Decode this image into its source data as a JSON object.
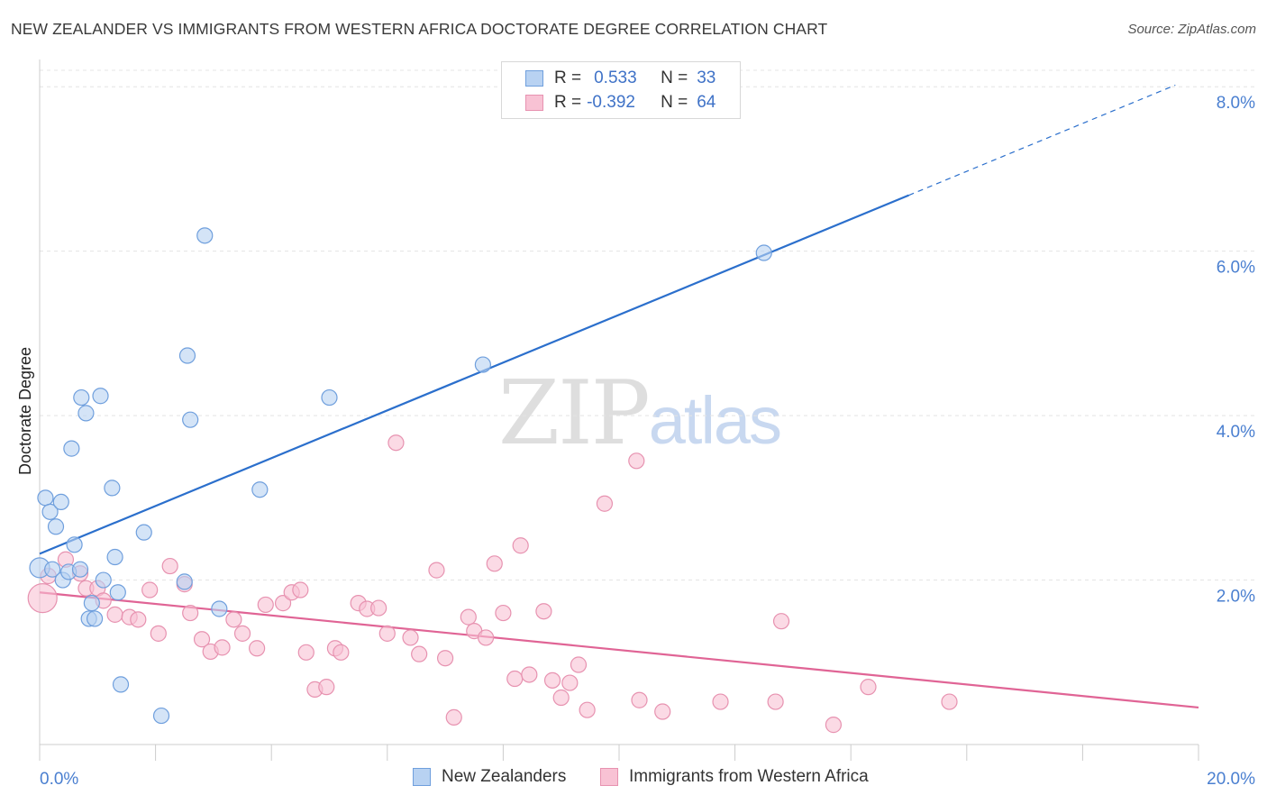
{
  "header": {
    "title": "NEW ZEALANDER VS IMMIGRANTS FROM WESTERN AFRICA DOCTORATE DEGREE CORRELATION CHART",
    "source": "Source: ZipAtlas.com"
  },
  "watermark": {
    "zip": "ZIP",
    "atlas": "atlas"
  },
  "legend": {
    "rows": [
      {
        "r_label": "R =",
        "r_value": "0.533",
        "n_label": "N =",
        "n_value": "33"
      },
      {
        "r_label": "R =",
        "r_value": "-0.392",
        "n_label": "N =",
        "n_value": "64"
      }
    ]
  },
  "bottom_legend": {
    "items": [
      "New Zealanders",
      "Immigrants from Western Africa"
    ]
  },
  "colors": {
    "blue_fill": "#b8d2f2",
    "blue_stroke": "#6f9fdd",
    "blue_line": "#2b6fcc",
    "pink_fill": "#f8c2d4",
    "pink_stroke": "#e792b0",
    "pink_line": "#e06495",
    "grid": "#e4e4e4",
    "tick_text": "#4a7fd0"
  },
  "chart_data": {
    "type": "scatter",
    "title": "NEW ZEALANDER VS IMMIGRANTS FROM WESTERN AFRICA DOCTORATE DEGREE CORRELATION CHART",
    "xlabel": "",
    "ylabel": "Doctorate Degree",
    "xlim": [
      0,
      20
    ],
    "ylim": [
      0,
      8.2
    ],
    "x_tick_labels": [
      "0.0%",
      "20.0%"
    ],
    "y_ticks": [
      2,
      4,
      6,
      8
    ],
    "y_tick_labels": [
      "2.0%",
      "4.0%",
      "6.0%",
      "8.0%"
    ],
    "grid": true,
    "legend_position": "top-center",
    "series": [
      {
        "name": "New Zealanders",
        "color": "#6f9fdd",
        "R": 0.533,
        "N": 33,
        "trend": {
          "x0": 0,
          "y0": 2.32,
          "x1": 15.0,
          "y1": 6.68,
          "dashed_to_x": 19.6,
          "dashed_to_y": 8.02
        },
        "points": [
          [
            0.0,
            2.15
          ],
          [
            0.1,
            3.0
          ],
          [
            0.18,
            2.83
          ],
          [
            0.22,
            2.13
          ],
          [
            0.28,
            2.65
          ],
          [
            0.37,
            2.95
          ],
          [
            0.4,
            2.0
          ],
          [
            0.5,
            2.1
          ],
          [
            0.55,
            3.6
          ],
          [
            0.6,
            2.43
          ],
          [
            0.7,
            2.13
          ],
          [
            0.72,
            4.22
          ],
          [
            0.8,
            4.03
          ],
          [
            0.85,
            1.53
          ],
          [
            0.9,
            1.72
          ],
          [
            0.95,
            1.53
          ],
          [
            1.05,
            4.24
          ],
          [
            1.1,
            2.0
          ],
          [
            1.25,
            3.12
          ],
          [
            1.3,
            2.28
          ],
          [
            1.35,
            1.85
          ],
          [
            1.4,
            0.73
          ],
          [
            1.8,
            2.58
          ],
          [
            2.1,
            0.35
          ],
          [
            2.5,
            1.98
          ],
          [
            2.55,
            4.73
          ],
          [
            2.6,
            3.95
          ],
          [
            2.85,
            6.19
          ],
          [
            3.1,
            1.65
          ],
          [
            3.8,
            3.1
          ],
          [
            5.0,
            4.22
          ],
          [
            7.65,
            4.62
          ],
          [
            12.5,
            5.98
          ]
        ]
      },
      {
        "name": "Immigrants from Western Africa",
        "color": "#e792b0",
        "R": -0.392,
        "N": 64,
        "trend": {
          "x0": 0,
          "y0": 1.85,
          "x1": 20.0,
          "y1": 0.45
        },
        "points": [
          [
            0.05,
            1.78
          ],
          [
            0.15,
            2.05
          ],
          [
            0.45,
            2.25
          ],
          [
            0.7,
            2.08
          ],
          [
            0.8,
            1.9
          ],
          [
            1.0,
            1.9
          ],
          [
            1.1,
            1.75
          ],
          [
            1.3,
            1.58
          ],
          [
            1.55,
            1.55
          ],
          [
            1.7,
            1.52
          ],
          [
            1.9,
            1.88
          ],
          [
            2.05,
            1.35
          ],
          [
            2.25,
            2.17
          ],
          [
            2.5,
            1.95
          ],
          [
            2.6,
            1.6
          ],
          [
            2.8,
            1.28
          ],
          [
            2.95,
            1.13
          ],
          [
            3.15,
            1.18
          ],
          [
            3.35,
            1.52
          ],
          [
            3.5,
            1.35
          ],
          [
            3.75,
            1.17
          ],
          [
            3.9,
            1.7
          ],
          [
            4.2,
            1.72
          ],
          [
            4.35,
            1.85
          ],
          [
            4.5,
            1.88
          ],
          [
            4.6,
            1.12
          ],
          [
            4.75,
            0.67
          ],
          [
            4.95,
            0.7
          ],
          [
            5.1,
            1.17
          ],
          [
            5.2,
            1.12
          ],
          [
            5.5,
            1.72
          ],
          [
            5.65,
            1.65
          ],
          [
            5.85,
            1.66
          ],
          [
            6.0,
            1.35
          ],
          [
            6.15,
            3.67
          ],
          [
            6.4,
            1.3
          ],
          [
            6.55,
            1.1
          ],
          [
            6.85,
            2.12
          ],
          [
            7.0,
            1.05
          ],
          [
            7.15,
            0.33
          ],
          [
            7.4,
            1.55
          ],
          [
            7.5,
            1.38
          ],
          [
            7.7,
            1.3
          ],
          [
            7.85,
            2.2
          ],
          [
            8.0,
            1.6
          ],
          [
            8.2,
            0.8
          ],
          [
            8.3,
            2.42
          ],
          [
            8.45,
            0.85
          ],
          [
            8.7,
            1.62
          ],
          [
            8.85,
            0.78
          ],
          [
            9.0,
            0.57
          ],
          [
            9.15,
            0.75
          ],
          [
            9.3,
            0.97
          ],
          [
            9.45,
            0.42
          ],
          [
            9.75,
            2.93
          ],
          [
            10.3,
            3.45
          ],
          [
            10.35,
            0.54
          ],
          [
            10.75,
            0.4
          ],
          [
            11.75,
            0.52
          ],
          [
            12.7,
            0.52
          ],
          [
            12.8,
            1.5
          ],
          [
            13.7,
            0.24
          ],
          [
            14.3,
            0.7
          ],
          [
            15.7,
            0.52
          ]
        ]
      }
    ]
  }
}
